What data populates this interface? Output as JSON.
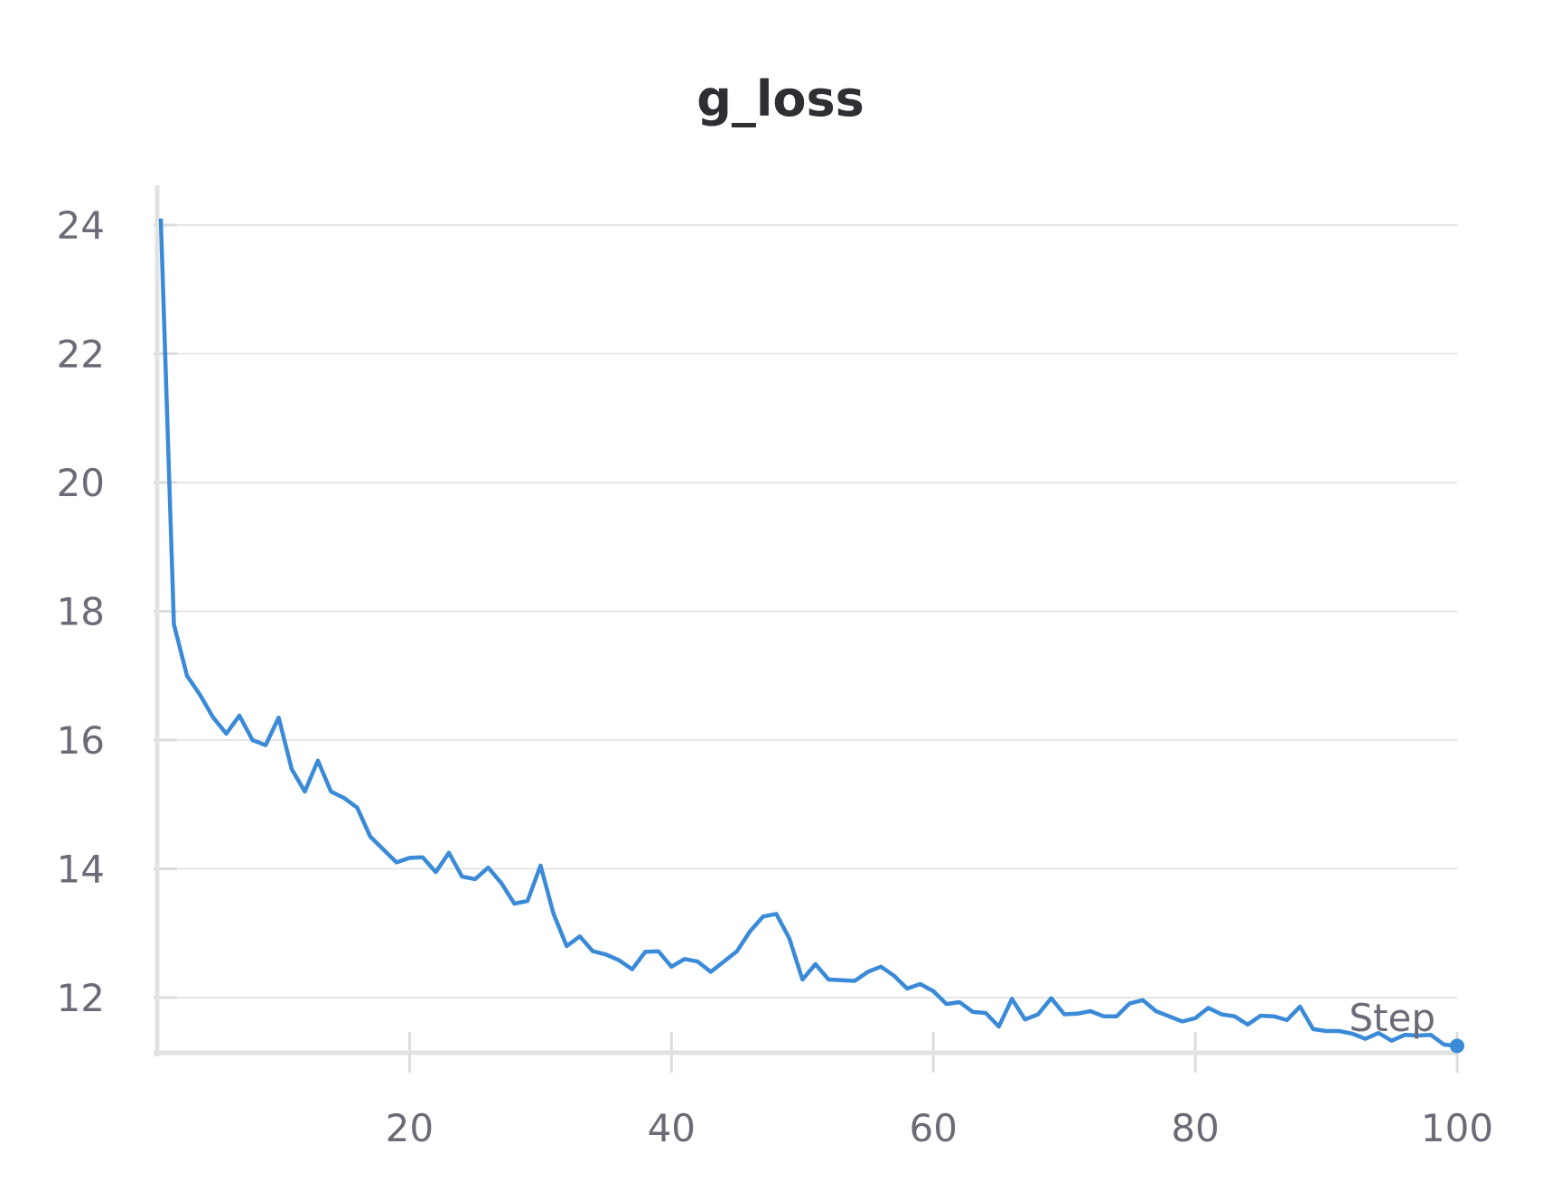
{
  "chart_data": {
    "type": "line",
    "title": "g_loss",
    "xlabel": "Step",
    "ylabel": "",
    "xlim": [
      1,
      100
    ],
    "ylim": [
      11.15,
      24.6
    ],
    "xticks": [
      20,
      40,
      60,
      80,
      100
    ],
    "yticks": [
      12,
      14,
      16,
      18,
      20,
      22,
      24
    ],
    "grid": true,
    "series": [
      {
        "color": "#3a8ad8",
        "x": [
          1,
          2,
          3,
          4,
          5,
          6,
          7,
          8,
          9,
          10,
          11,
          12,
          13,
          14,
          15,
          16,
          17,
          18,
          19,
          20,
          21,
          22,
          23,
          24,
          25,
          26,
          27,
          28,
          29,
          30,
          31,
          32,
          33,
          34,
          35,
          36,
          37,
          38,
          39,
          40,
          41,
          42,
          43,
          44,
          45,
          46,
          47,
          48,
          49,
          50,
          51,
          52,
          53,
          54,
          55,
          56,
          57,
          58,
          59,
          60,
          61,
          62,
          63,
          64,
          65,
          66,
          67,
          68,
          69,
          70,
          71,
          72,
          73,
          74,
          75,
          76,
          77,
          78,
          79,
          80,
          81,
          82,
          83,
          84,
          85,
          86,
          87,
          88,
          89,
          90,
          91,
          92,
          93,
          94,
          95,
          96,
          97,
          98,
          99,
          100
        ],
        "values": [
          24.1,
          17.8,
          17.0,
          16.7,
          16.35,
          16.1,
          16.38,
          16.0,
          15.92,
          16.35,
          15.55,
          15.2,
          15.68,
          15.2,
          15.1,
          14.95,
          14.5,
          14.3,
          14.1,
          14.17,
          14.18,
          13.95,
          14.25,
          13.88,
          13.84,
          14.02,
          13.78,
          13.46,
          13.5,
          14.05,
          13.3,
          12.8,
          12.95,
          12.72,
          12.67,
          12.58,
          12.44,
          12.71,
          12.72,
          12.48,
          12.6,
          12.56,
          12.4,
          12.56,
          12.72,
          13.03,
          13.26,
          13.3,
          12.92,
          12.28,
          12.52,
          12.28,
          12.27,
          12.26,
          12.4,
          12.48,
          12.34,
          12.14,
          12.21,
          12.1,
          11.9,
          11.93,
          11.78,
          11.76,
          11.55,
          11.98,
          11.66,
          11.74,
          11.99,
          11.74,
          11.75,
          11.79,
          11.71,
          11.71,
          11.91,
          11.96,
          11.79,
          11.71,
          11.63,
          11.68,
          11.84,
          11.74,
          11.71,
          11.58,
          11.72,
          11.71,
          11.65,
          11.86,
          11.51,
          11.48,
          11.48,
          11.44,
          11.36,
          11.45,
          11.33,
          11.42,
          11.41,
          11.42,
          11.27,
          11.25
        ]
      }
    ]
  }
}
